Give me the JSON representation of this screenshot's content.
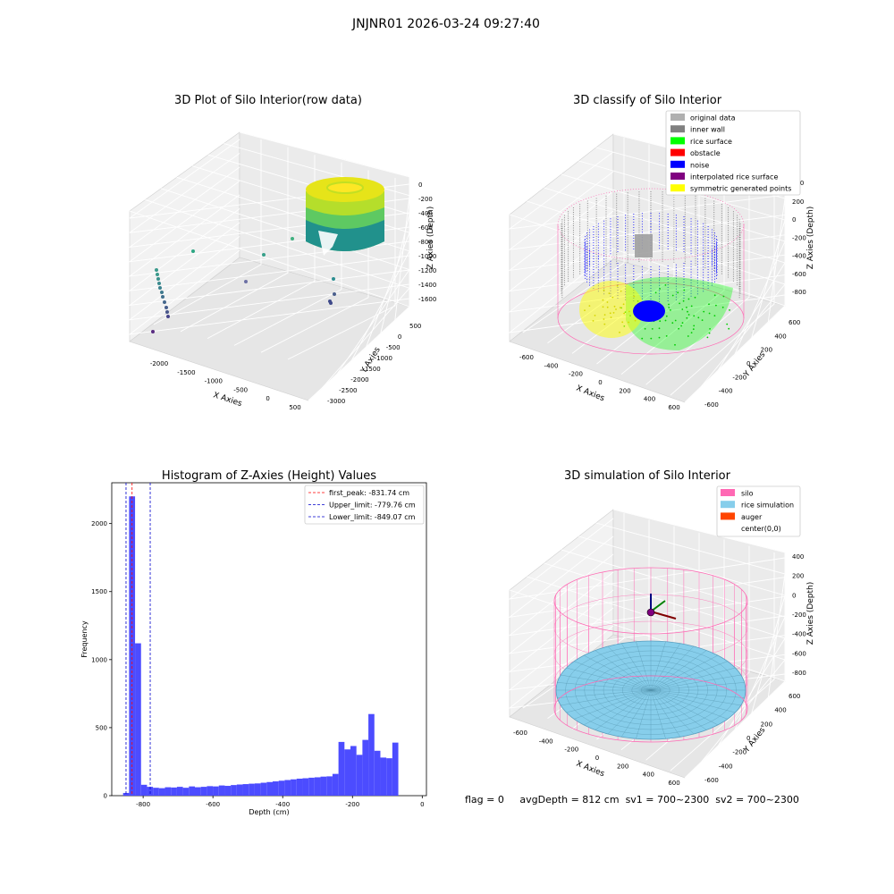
{
  "suptitle": "JNJNR01 2026-03-24 09:27:40",
  "footer": {
    "flag": "flag = 0",
    "avg_depth": "avgDepth = 812 cm",
    "sv1": "sv1 = 700~2300",
    "sv2": "sv2 = 700~2300"
  },
  "colors": {
    "original_data": "#b0b0b0",
    "inner_wall": "#808080",
    "rice_surface": "#00ff00",
    "obstacle": "#ff0000",
    "noise": "#0000ff",
    "interpolated": "#800080",
    "symmetric": "#ffff00",
    "silo": "#ff69b4",
    "rice_sim": "#87ceeb",
    "auger": "#ff4500",
    "hist_bar": "#4c4cff",
    "peak_line": "#ff0000",
    "limit_line": "#0000cc"
  },
  "chart_data": [
    {
      "type": "scatter",
      "subtype": "3d",
      "title": "3D Plot of Silo Interior(row data)",
      "xlabel": "X Axies",
      "ylabel": "Y Axies",
      "zlabel": "Z Axies (Depth)",
      "x_ticks": [
        "-2000",
        "-1500",
        "-1000",
        "-500",
        "0",
        "500"
      ],
      "y_ticks": [
        "500",
        "0",
        "-500",
        "-1000",
        "-1500",
        "-2000",
        "-2500",
        "-3000"
      ],
      "z_ticks": [
        "0",
        "-200",
        "-400",
        "-600",
        "-800",
        "-1000",
        "-1200",
        "-1400",
        "-1600"
      ],
      "colormap": "viridis"
    },
    {
      "type": "scatter",
      "subtype": "3d",
      "title": "3D classify of Silo Interior",
      "xlabel": "X Axies",
      "ylabel": "Y Axies",
      "zlabel": "Z Axies (Depth)",
      "x_ticks": [
        "-600",
        "-400",
        "-200",
        "0",
        "200",
        "400",
        "600"
      ],
      "y_ticks": [
        "600",
        "400",
        "200",
        "0",
        "-200",
        "-400",
        "-600"
      ],
      "z_ticks": [
        "200",
        "0",
        "-200",
        "-400",
        "-600",
        "-800"
      ],
      "z_top_tick": "400",
      "legend": [
        "original data",
        "inner wall",
        "rice surface",
        "obstacle",
        "noise",
        "interpolated rice surface",
        "symmetric generated points"
      ],
      "legend_location": "top-right"
    },
    {
      "type": "bar",
      "subtype": "histogram",
      "title": "Histogram of Z-Axies (Height) Values",
      "xlabel": "Depth (cm)",
      "ylabel": "Frequency",
      "xlim": [
        -890,
        12
      ],
      "ylim": [
        0,
        2300
      ],
      "x_ticks": [
        -800,
        -600,
        -400,
        -200,
        0
      ],
      "y_ticks": [
        0,
        500,
        1000,
        1500,
        2000
      ],
      "bin_width": 17.15,
      "bin_start": -857.5,
      "values": [
        20,
        2200,
        1120,
        80,
        65,
        58,
        55,
        62,
        60,
        65,
        58,
        68,
        62,
        65,
        70,
        68,
        75,
        72,
        78,
        82,
        85,
        88,
        90,
        95,
        100,
        105,
        110,
        115,
        120,
        125,
        128,
        132,
        135,
        140,
        142,
        160,
        395,
        340,
        365,
        300,
        410,
        600,
        330,
        280,
        275,
        390
      ],
      "vlines": [
        {
          "label": "first_peak: -831.74 cm",
          "x": -831.74,
          "style": "peak"
        },
        {
          "label": "Upper_limit: -779.76 cm",
          "x": -779.76,
          "style": "limit"
        },
        {
          "label": "Lower_limit: -849.07 cm",
          "x": -849.07,
          "style": "limit"
        }
      ],
      "legend_location": "top-right"
    },
    {
      "type": "scatter",
      "subtype": "3d-surface",
      "title": "3D simulation of Silo Interior",
      "xlabel": "X Axies",
      "ylabel": "Y Axies",
      "zlabel": "Z Axies (Depth)",
      "x_ticks": [
        "-600",
        "-400",
        "-200",
        "0",
        "200",
        "400",
        "600"
      ],
      "y_ticks": [
        "600",
        "400",
        "200",
        "0",
        "-200",
        "-400",
        "-600"
      ],
      "z_ticks": [
        "400",
        "200",
        "0",
        "-200",
        "-400",
        "-600",
        "-800"
      ],
      "legend": [
        "silo",
        "rice simulation",
        "auger",
        "center(0,0)"
      ],
      "legend_location": "top-right"
    }
  ]
}
